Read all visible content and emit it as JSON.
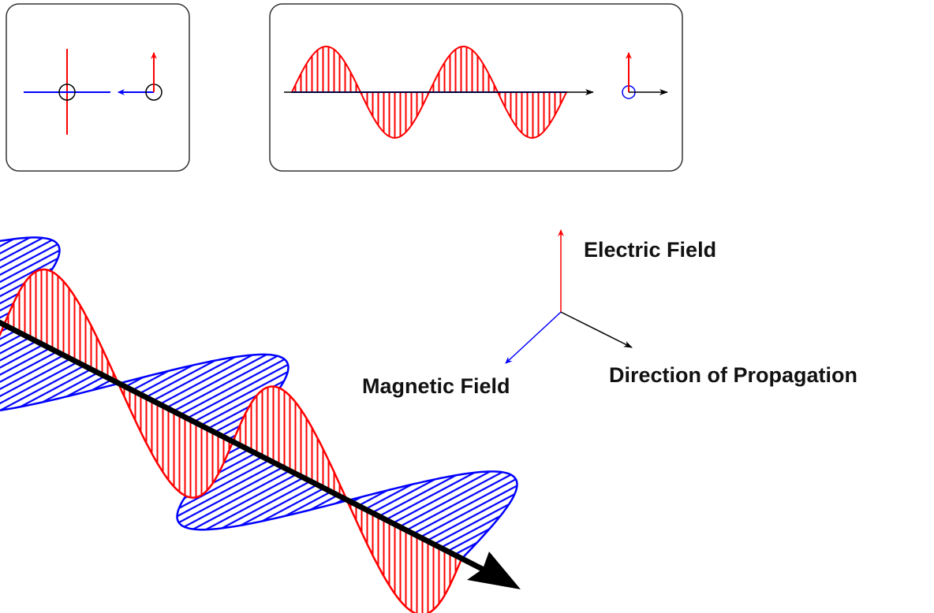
{
  "labels": {
    "electric": "Electric Field",
    "magnetic": "Magnetic Field",
    "propagation": "Direction of Propagation"
  }
}
